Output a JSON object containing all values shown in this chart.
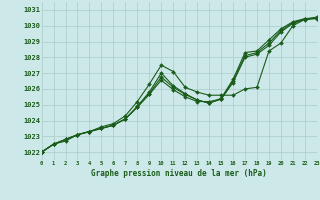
{
  "title": "Graphe pression niveau de la mer (hPa)",
  "bg_color": "#cce8e8",
  "grid_color": "#aacccc",
  "line_color": "#1a5c1a",
  "marker_color": "#1a5c1a",
  "xlim": [
    0,
    23
  ],
  "ylim": [
    1021.5,
    1031.5
  ],
  "yticks": [
    1022,
    1023,
    1024,
    1025,
    1026,
    1027,
    1028,
    1029,
    1030,
    1031
  ],
  "xticks": [
    0,
    1,
    2,
    3,
    4,
    5,
    6,
    7,
    8,
    9,
    10,
    11,
    12,
    13,
    14,
    15,
    16,
    17,
    18,
    19,
    20,
    21,
    22,
    23
  ],
  "series": [
    {
      "x": [
        0,
        1,
        2,
        3,
        4,
        5,
        6,
        7,
        8,
        9,
        10,
        11,
        12,
        13,
        14,
        15,
        16,
        17,
        18,
        19,
        20,
        21,
        22,
        23
      ],
      "y": [
        1022.0,
        1022.5,
        1022.7,
        1023.1,
        1023.3,
        1023.6,
        1023.8,
        1024.3,
        1025.2,
        1026.3,
        1027.5,
        1027.1,
        1026.1,
        1025.8,
        1025.6,
        1025.6,
        1025.6,
        1026.0,
        1026.1,
        1028.4,
        1028.9,
        1030.0,
        1030.4,
        1030.55
      ]
    },
    {
      "x": [
        0,
        1,
        2,
        3,
        4,
        5,
        6,
        7,
        8,
        9,
        10,
        11,
        12,
        13,
        14,
        15,
        16,
        17,
        18,
        19,
        20,
        21,
        22,
        23
      ],
      "y": [
        1022.0,
        1022.5,
        1022.8,
        1023.1,
        1023.3,
        1023.5,
        1023.7,
        1024.1,
        1024.9,
        1025.8,
        1027.0,
        1026.2,
        1025.7,
        1025.3,
        1025.1,
        1025.4,
        1026.6,
        1028.3,
        1028.4,
        1029.1,
        1029.8,
        1030.25,
        1030.45,
        1030.5
      ]
    },
    {
      "x": [
        0,
        1,
        2,
        3,
        4,
        5,
        6,
        7,
        8,
        9,
        10,
        11,
        12,
        13,
        14,
        15,
        16,
        17,
        18,
        19,
        20,
        21,
        22,
        23
      ],
      "y": [
        1022.0,
        1022.5,
        1022.8,
        1023.1,
        1023.3,
        1023.5,
        1023.7,
        1024.1,
        1024.85,
        1025.7,
        1026.75,
        1026.1,
        1025.65,
        1025.3,
        1025.1,
        1025.35,
        1026.5,
        1028.1,
        1028.3,
        1028.9,
        1029.7,
        1030.2,
        1030.42,
        1030.48
      ]
    },
    {
      "x": [
        0,
        1,
        2,
        3,
        4,
        5,
        6,
        7,
        8,
        9,
        10,
        11,
        12,
        13,
        14,
        15,
        16,
        17,
        18,
        19,
        20,
        21,
        22,
        23
      ],
      "y": [
        1022.0,
        1022.5,
        1022.8,
        1023.1,
        1023.3,
        1023.5,
        1023.7,
        1024.1,
        1024.85,
        1025.65,
        1026.55,
        1025.95,
        1025.5,
        1025.2,
        1025.2,
        1025.35,
        1026.4,
        1028.0,
        1028.2,
        1028.75,
        1029.6,
        1030.15,
        1030.38,
        1030.45
      ]
    }
  ],
  "figsize": [
    3.2,
    2.0
  ],
  "dpi": 100
}
